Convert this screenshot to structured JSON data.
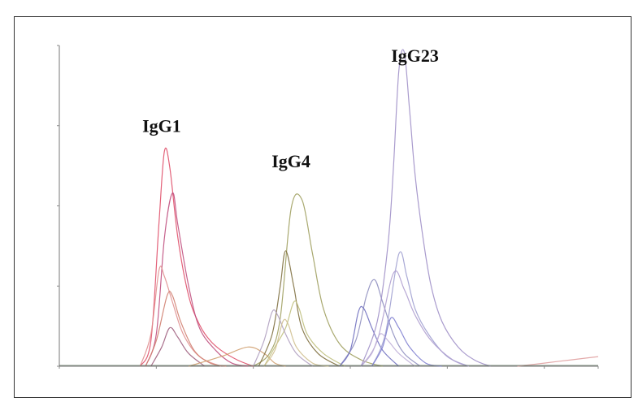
{
  "chart_data": {
    "type": "line",
    "title": "",
    "xlabel": "",
    "ylabel": "",
    "xlim": [
      0,
      100
    ],
    "ylim": [
      0,
      100
    ],
    "grid": false,
    "peak_labels": [
      {
        "text": "IgG1",
        "x": 19,
        "y": 73
      },
      {
        "text": "IgG4",
        "x": 43,
        "y": 62
      },
      {
        "text": "IgG23",
        "x": 66,
        "y": 95
      }
    ],
    "series": [
      {
        "color": "#e0506a",
        "values": [
          [
            15,
            0
          ],
          [
            17,
            8
          ],
          [
            18.5,
            45
          ],
          [
            19.5,
            67
          ],
          [
            20.5,
            62
          ],
          [
            22,
            40
          ],
          [
            24,
            22
          ],
          [
            26,
            13
          ],
          [
            28,
            8
          ],
          [
            30,
            5
          ],
          [
            33,
            2
          ],
          [
            36,
            0
          ]
        ]
      },
      {
        "color": "#c05080",
        "values": [
          [
            16,
            0
          ],
          [
            18,
            10
          ],
          [
            19.5,
            40
          ],
          [
            21,
            54
          ],
          [
            22,
            44
          ],
          [
            24,
            25
          ],
          [
            26,
            12
          ],
          [
            29,
            5
          ],
          [
            32,
            1
          ],
          [
            35,
            0
          ]
        ]
      },
      {
        "color": "#e09090",
        "values": [
          [
            15,
            0
          ],
          [
            17,
            10
          ],
          [
            18.5,
            30
          ],
          [
            19.5,
            28
          ],
          [
            21,
            20
          ],
          [
            23,
            10
          ],
          [
            26,
            3
          ],
          [
            30,
            0
          ]
        ]
      },
      {
        "color": "#d08070",
        "values": [
          [
            16,
            0
          ],
          [
            18,
            8
          ],
          [
            20,
            22
          ],
          [
            21,
            22
          ],
          [
            22.5,
            14
          ],
          [
            25,
            5
          ],
          [
            28,
            1
          ],
          [
            31,
            0
          ]
        ]
      },
      {
        "color": "#a06080",
        "values": [
          [
            17,
            0
          ],
          [
            19,
            6
          ],
          [
            20.5,
            12
          ],
          [
            22,
            9
          ],
          [
            24,
            4
          ],
          [
            27,
            0
          ]
        ]
      },
      {
        "color": "#d0a070",
        "values": [
          [
            24,
            0
          ],
          [
            30,
            3
          ],
          [
            35,
            6
          ],
          [
            38,
            4
          ],
          [
            40,
            1
          ],
          [
            42,
            0
          ]
        ]
      },
      {
        "color": "#a0a060",
        "values": [
          [
            36,
            0
          ],
          [
            39,
            4
          ],
          [
            41,
            15
          ],
          [
            43,
            49
          ],
          [
            45,
            52
          ],
          [
            47,
            35
          ],
          [
            49,
            18
          ],
          [
            52,
            7
          ],
          [
            56,
            2
          ],
          [
            60,
            0
          ]
        ]
      },
      {
        "color": "#807040",
        "values": [
          [
            37,
            0
          ],
          [
            39.5,
            10
          ],
          [
            41,
            25
          ],
          [
            42,
            36
          ],
          [
            43.5,
            25
          ],
          [
            45,
            12
          ],
          [
            48,
            4
          ],
          [
            52,
            0
          ]
        ]
      },
      {
        "color": "#c0c080",
        "values": [
          [
            38,
            0
          ],
          [
            40,
            6
          ],
          [
            42,
            12
          ],
          [
            43.5,
            20
          ],
          [
            44.5,
            18
          ],
          [
            46,
            10
          ],
          [
            49,
            4
          ],
          [
            53,
            0
          ]
        ]
      },
      {
        "color": "#b0a0c0",
        "values": [
          [
            36,
            0
          ],
          [
            38,
            8
          ],
          [
            39.5,
            17
          ],
          [
            40.5,
            16
          ],
          [
            42,
            10
          ],
          [
            44,
            4
          ],
          [
            47,
            0
          ]
        ]
      },
      {
        "color": "#d0c090",
        "values": [
          [
            38,
            0
          ],
          [
            40,
            5
          ],
          [
            41.5,
            14
          ],
          [
            42.5,
            13
          ],
          [
            44,
            6
          ],
          [
            47,
            1
          ],
          [
            50,
            0
          ]
        ]
      },
      {
        "color": "#9090c0",
        "values": [
          [
            52,
            0
          ],
          [
            55,
            8
          ],
          [
            57,
            22
          ],
          [
            58.5,
            27
          ],
          [
            60,
            20
          ],
          [
            62,
            10
          ],
          [
            64,
            4
          ],
          [
            67,
            0
          ]
        ]
      },
      {
        "color": "#7070c0",
        "values": [
          [
            52,
            0
          ],
          [
            54,
            5
          ],
          [
            55.5,
            17
          ],
          [
            56.5,
            18
          ],
          [
            58,
            12
          ],
          [
            60,
            5
          ],
          [
            63,
            0
          ]
        ]
      },
      {
        "color": "#a0a0d0",
        "values": [
          [
            58,
            0
          ],
          [
            60.5,
            10
          ],
          [
            63,
            35
          ],
          [
            64.5,
            28
          ],
          [
            66,
            18
          ],
          [
            68.5,
            10
          ],
          [
            72,
            3
          ],
          [
            76,
            0
          ]
        ]
      },
      {
        "color": "#8080d0",
        "values": [
          [
            58,
            0
          ],
          [
            60,
            6
          ],
          [
            61.5,
            15
          ],
          [
            63,
            12
          ],
          [
            65,
            6
          ],
          [
            68,
            1
          ],
          [
            71,
            0
          ]
        ]
      },
      {
        "color": "#b0a0d0",
        "values": [
          [
            56,
            0
          ],
          [
            59,
            8
          ],
          [
            62,
            29
          ],
          [
            64,
            24
          ],
          [
            66,
            16
          ],
          [
            69,
            8
          ],
          [
            73,
            2
          ],
          [
            76,
            0
          ]
        ]
      },
      {
        "color": "#c0b0d8",
        "values": [
          [
            56,
            0
          ],
          [
            58,
            4
          ],
          [
            59.5,
            10
          ],
          [
            61,
            8
          ],
          [
            63,
            4
          ],
          [
            66,
            0
          ]
        ]
      },
      {
        "color": "#a090c8",
        "values": [
          [
            56,
            0
          ],
          [
            59,
            14
          ],
          [
            61,
            38
          ],
          [
            62,
            62
          ],
          [
            63,
            92
          ],
          [
            64,
            98
          ],
          [
            65,
            80
          ],
          [
            66,
            60
          ],
          [
            67.5,
            40
          ],
          [
            69,
            25
          ],
          [
            71,
            14
          ],
          [
            74,
            6
          ],
          [
            77,
            2
          ],
          [
            80,
            0
          ]
        ]
      },
      {
        "color": "#e0a0a0",
        "values": [
          [
            85,
            0
          ],
          [
            90,
            1
          ],
          [
            95,
            2
          ],
          [
            100,
            3
          ]
        ]
      }
    ]
  }
}
